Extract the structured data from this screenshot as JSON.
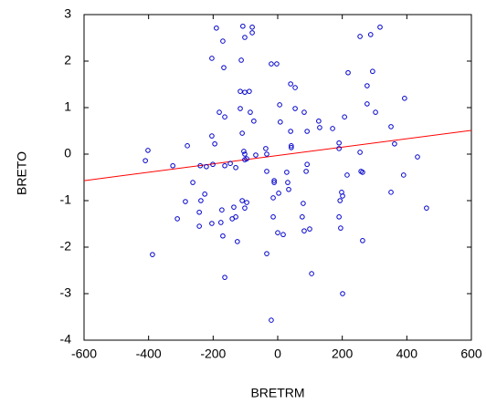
{
  "chart_data": {
    "type": "scatter",
    "xlabel": "BRETRM",
    "ylabel": "BRETO",
    "xlim": [
      -600,
      600
    ],
    "xticks": [
      -600,
      -400,
      -200,
      0,
      200,
      400,
      600
    ],
    "ylim": [
      -4,
      3
    ],
    "yticks": [
      -4,
      -3,
      -2,
      -1,
      0,
      1,
      2,
      3
    ],
    "series": [
      {
        "color": "#0000cc",
        "x": [
          -190,
          -108,
          -79,
          -79,
          -102,
          -170,
          317,
          288,
          255,
          -204,
          -113,
          -20,
          -3,
          -167,
          218,
          294,
          40,
          54,
          277,
          393,
          -116,
          -102,
          -88,
          277,
          -181,
          -164,
          -116,
          -85,
          6,
          54,
          82,
          303,
          -74,
          8,
          127,
          130,
          91,
          207,
          170,
          351,
          -204,
          -195,
          -110,
          -105,
          -102,
          40,
          42,
          42,
          -37,
          -34,
          190,
          190,
          362,
          255,
          -402,
          -410,
          -280,
          -325,
          -240,
          -221,
          -201,
          -164,
          -147,
          -130,
          -102,
          -96,
          -68,
          -34,
          -11,
          -11,
          28,
          31,
          88,
          91,
          215,
          258,
          263,
          351,
          390,
          433,
          461,
          -263,
          -286,
          -226,
          -238,
          -243,
          -173,
          -136,
          -110,
          -102,
          -96,
          -14,
          3,
          34,
          79,
          193,
          198,
          201,
          -311,
          -204,
          -243,
          -176,
          -141,
          -130,
          -14,
          0,
          17,
          76,
          82,
          99,
          190,
          195,
          263,
          -170,
          -125,
          -34,
          -388,
          -164,
          105,
          201,
          -20
        ],
        "values": [
          2.71,
          2.75,
          2.73,
          2.61,
          2.51,
          2.43,
          2.73,
          2.57,
          2.53,
          2.06,
          2.02,
          1.94,
          1.94,
          1.86,
          1.75,
          1.78,
          1.51,
          1.43,
          1.47,
          1.2,
          1.35,
          1.33,
          1.35,
          1.08,
          0.9,
          0.8,
          0.98,
          0.9,
          1.06,
          0.98,
          0.9,
          0.9,
          0.71,
          0.69,
          0.71,
          0.57,
          0.49,
          0.8,
          0.55,
          0.59,
          0.39,
          0.22,
          0.45,
          0.06,
          0,
          0.49,
          0.18,
          0.14,
          0.12,
          0,
          0.24,
          0.12,
          0.22,
          0.04,
          0.08,
          -0.14,
          0.18,
          -0.25,
          -0.25,
          -0.27,
          -0.22,
          -0.25,
          -0.2,
          -0.29,
          -0.12,
          -0.1,
          -0.02,
          -0.37,
          -0.57,
          -0.61,
          -0.39,
          -0.61,
          -0.37,
          -0.22,
          -0.45,
          -0.37,
          -0.39,
          -0.82,
          -0.45,
          -0.06,
          -1.16,
          -0.61,
          -1.02,
          -0.86,
          -1,
          -1.25,
          -1.2,
          -1.14,
          -1,
          -1.16,
          -1.04,
          -0.94,
          -0.84,
          -0.76,
          -1.06,
          -1,
          -0.82,
          -0.9,
          -1.39,
          -1.49,
          -1.55,
          -1.47,
          -1.39,
          -1.35,
          -1.35,
          -1.69,
          -1.73,
          -1.35,
          -1.65,
          -1.61,
          -1.35,
          -1.59,
          -1.86,
          -1.76,
          -1.88,
          -2.14,
          -2.16,
          -2.65,
          -2.57,
          -3,
          -3.57
        ]
      }
    ],
    "fit_line": {
      "color": "#ff0000",
      "x": [
        -600,
        600
      ],
      "values": [
        -0.57,
        0.51
      ]
    }
  }
}
